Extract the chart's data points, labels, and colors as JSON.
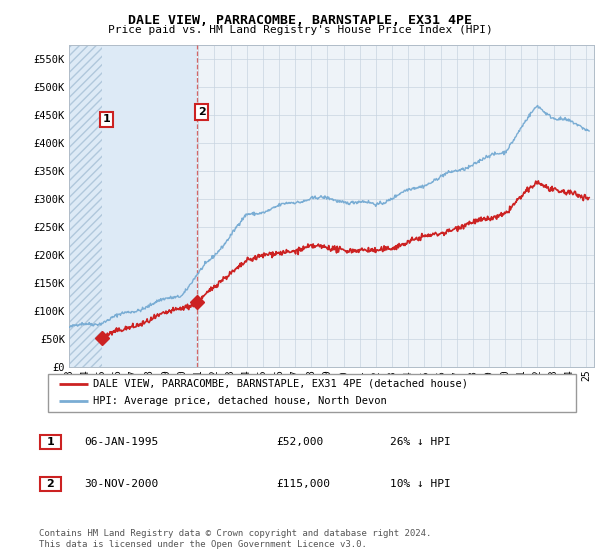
{
  "title": "DALE VIEW, PARRACOMBE, BARNSTAPLE, EX31 4PE",
  "subtitle": "Price paid vs. HM Land Registry's House Price Index (HPI)",
  "legend_line1": "DALE VIEW, PARRACOMBE, BARNSTAPLE, EX31 4PE (detached house)",
  "legend_line2": "HPI: Average price, detached house, North Devon",
  "footer": "Contains HM Land Registry data © Crown copyright and database right 2024.\nThis data is licensed under the Open Government Licence v3.0.",
  "sale1_date": "06-JAN-1995",
  "sale1_price": "£52,000",
  "sale1_hpi": "26% ↓ HPI",
  "sale2_date": "30-NOV-2000",
  "sale2_price": "£115,000",
  "sale2_hpi": "10% ↓ HPI",
  "sale1_x": 1995.03,
  "sale1_y": 52000,
  "sale2_x": 2000.92,
  "sale2_y": 115000,
  "hpi_color": "#7aadd4",
  "price_color": "#cc2222",
  "bg_color": "#ffffff",
  "plot_bg": "#eef3f8",
  "hatch_bg": "#dce8f4",
  "ylim_max": 575000,
  "ylim_min": 0,
  "xlim_min": 1993,
  "xlim_max": 2025.5,
  "yticks": [
    0,
    50000,
    100000,
    150000,
    200000,
    250000,
    300000,
    350000,
    400000,
    450000,
    500000,
    550000
  ],
  "ytick_labels": [
    "£0",
    "£50K",
    "£100K",
    "£150K",
    "£200K",
    "£250K",
    "£300K",
    "£350K",
    "£400K",
    "£450K",
    "£500K",
    "£550K"
  ],
  "xticks": [
    1993,
    1994,
    1995,
    1996,
    1997,
    1998,
    1999,
    2000,
    2001,
    2002,
    2003,
    2004,
    2005,
    2006,
    2007,
    2008,
    2009,
    2010,
    2011,
    2012,
    2013,
    2014,
    2015,
    2016,
    2017,
    2018,
    2019,
    2020,
    2021,
    2022,
    2023,
    2024,
    2025
  ]
}
